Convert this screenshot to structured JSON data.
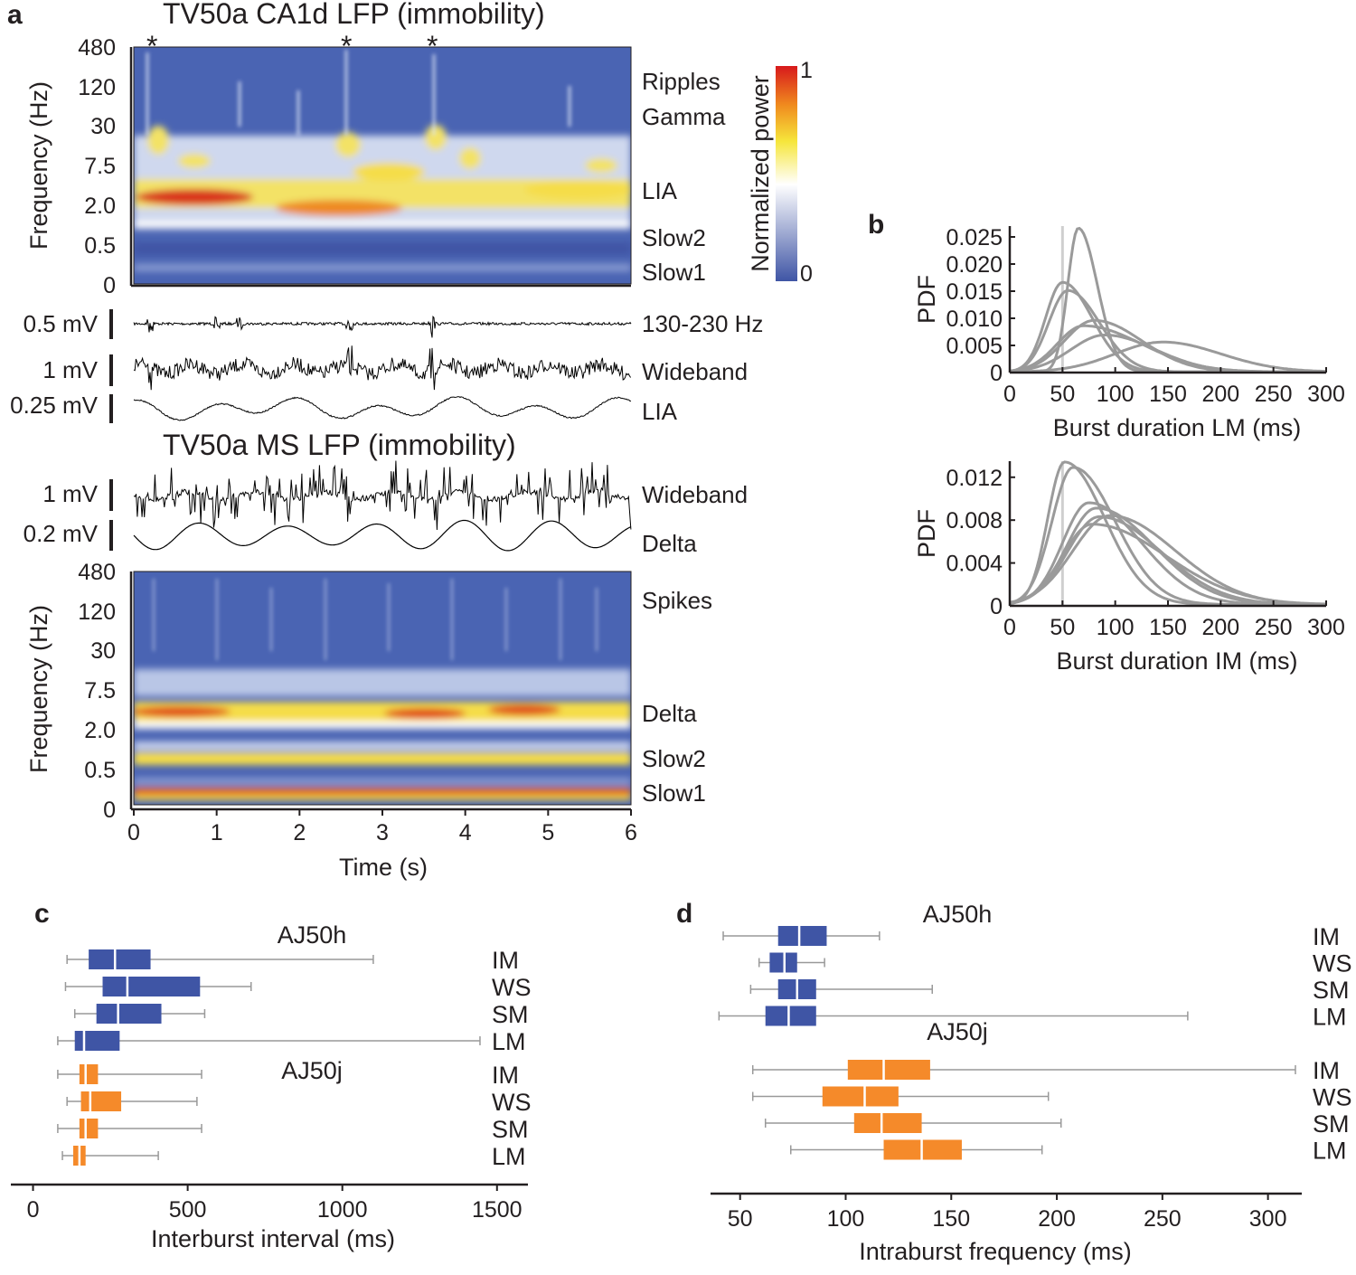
{
  "panels": {
    "a": "a",
    "b": "b",
    "c": "c",
    "d": "d"
  },
  "colors": {
    "blue": "#3f55a5",
    "orange": "#f58a2a",
    "gray": "#999999",
    "curve": "#9a9a9a",
    "ink": "#231f20"
  },
  "chart_data": [
    {
      "id": "a_top_spectrogram",
      "type": "heatmap",
      "title": "TV50a CA1d LFP (immobility)",
      "ylabel": "Frequency (Hz)",
      "yticks": [
        "480",
        "120",
        "30",
        "7.5",
        "2.0",
        "0.5",
        "0"
      ],
      "xlim": [
        0,
        6
      ],
      "markers": [
        "*",
        "*",
        "*"
      ],
      "marker_times": [
        0.2,
        2.6,
        3.6
      ],
      "band_labels": [
        "Ripples",
        "Gamma",
        "LIA",
        "Slow2",
        "Slow1"
      ],
      "colorbar": {
        "label": "Normalized power",
        "min": "0",
        "max": "1",
        "colors": [
          "#3f55a5",
          "#ffffff",
          "#f6e63b",
          "#f08a1e",
          "#d7191c"
        ]
      }
    },
    {
      "id": "a_ca1_traces",
      "type": "line",
      "traces": [
        {
          "scale": "0.5 mV",
          "label": "130-230 Hz"
        },
        {
          "scale": "1 mV",
          "label": "Wideband"
        },
        {
          "scale": "0.25 mV",
          "label": "LIA"
        }
      ]
    },
    {
      "id": "a_ms_traces",
      "type": "line",
      "title": "TV50a MS LFP (immobility)",
      "traces": [
        {
          "scale": "1 mV",
          "label": "Wideband"
        },
        {
          "scale": "0.2 mV",
          "label": "Delta"
        }
      ]
    },
    {
      "id": "a_bottom_spectrogram",
      "type": "heatmap",
      "ylabel": "Frequency (Hz)",
      "yticks": [
        "480",
        "120",
        "30",
        "7.5",
        "2.0",
        "0.5",
        "0"
      ],
      "xlabel": "Time (s)",
      "xticks": [
        "0",
        "1",
        "2",
        "3",
        "4",
        "5",
        "6"
      ],
      "xlim": [
        0,
        6
      ],
      "band_labels": [
        "Spikes",
        "Delta",
        "Slow2",
        "Slow1"
      ]
    },
    {
      "id": "b_lm",
      "type": "line",
      "ylabel": "PDF",
      "xlabel": "Burst duration LM (ms)",
      "xlim": [
        0,
        300
      ],
      "ylim": [
        0,
        0.027
      ],
      "xticks": [
        "0",
        "50",
        "100",
        "150",
        "200",
        "250",
        "300"
      ],
      "yticks": [
        "0",
        "0.005",
        "0.010",
        "0.015",
        "0.020",
        "0.025"
      ],
      "ytick_values": [
        0,
        0.005,
        0.01,
        0.015,
        0.02,
        0.025
      ],
      "reference_line_x": 50,
      "series": [
        {
          "name": "curve 1",
          "peak_x": 65,
          "peak_y": 0.0265,
          "sd_left": 10,
          "sd_right": 18
        },
        {
          "name": "curve 2",
          "peak_x": 50,
          "peak_y": 0.0165,
          "sd_left": 16,
          "sd_right": 28
        },
        {
          "name": "curve 3",
          "peak_x": 55,
          "peak_y": 0.015,
          "sd_left": 18,
          "sd_right": 30
        },
        {
          "name": "curve 4",
          "peak_x": 80,
          "peak_y": 0.0095,
          "sd_left": 28,
          "sd_right": 45
        },
        {
          "name": "curve 5",
          "peak_x": 70,
          "peak_y": 0.0085,
          "sd_left": 25,
          "sd_right": 55
        },
        {
          "name": "curve 6",
          "peak_x": 90,
          "peak_y": 0.0068,
          "sd_left": 32,
          "sd_right": 48
        },
        {
          "name": "curve 7",
          "peak_x": 145,
          "peak_y": 0.0055,
          "sd_left": 45,
          "sd_right": 55
        }
      ]
    },
    {
      "id": "b_im",
      "type": "line",
      "ylabel": "PDF",
      "xlabel": "Burst duration IM (ms)",
      "xlim": [
        0,
        300
      ],
      "ylim": [
        0,
        0.0135
      ],
      "xticks": [
        "0",
        "50",
        "100",
        "150",
        "200",
        "250",
        "300"
      ],
      "yticks": [
        "0",
        "0.004",
        "0.008",
        "0.012"
      ],
      "ytick_values": [
        0,
        0.004,
        0.008,
        0.012
      ],
      "reference_line_x": 50,
      "series": [
        {
          "name": "curve 1",
          "peak_x": 52,
          "peak_y": 0.0133,
          "sd_left": 16,
          "sd_right": 38
        },
        {
          "name": "curve 2",
          "peak_x": 60,
          "peak_y": 0.0128,
          "sd_left": 20,
          "sd_right": 40
        },
        {
          "name": "curve 3",
          "peak_x": 75,
          "peak_y": 0.0095,
          "sd_left": 25,
          "sd_right": 50
        },
        {
          "name": "curve 4",
          "peak_x": 82,
          "peak_y": 0.009,
          "sd_left": 28,
          "sd_right": 55
        },
        {
          "name": "curve 5",
          "peak_x": 85,
          "peak_y": 0.0082,
          "sd_left": 30,
          "sd_right": 58
        },
        {
          "name": "curve 6",
          "peak_x": 95,
          "peak_y": 0.0083,
          "sd_left": 35,
          "sd_right": 62
        },
        {
          "name": "curve 7",
          "peak_x": 78,
          "peak_y": 0.0075,
          "sd_left": 28,
          "sd_right": 70
        }
      ]
    },
    {
      "id": "c",
      "type": "box",
      "xlabel": "Interburst interval (ms)",
      "xlim": [
        -60,
        1600
      ],
      "xticks": [
        0,
        500,
        1000,
        1500
      ],
      "xtick_labels": [
        "0",
        "500",
        "1000",
        "1500"
      ],
      "groups": [
        {
          "name": "AJ50h",
          "color": "#3f55a5",
          "rows": [
            {
              "label": "IM",
              "whisker_low": 110,
              "q1": 180,
              "median": 265,
              "q3": 380,
              "whisker_high": 1100
            },
            {
              "label": "WS",
              "whisker_low": 105,
              "q1": 225,
              "median": 305,
              "q3": 540,
              "whisker_high": 705
            },
            {
              "label": "SM",
              "whisker_low": 135,
              "q1": 205,
              "median": 275,
              "q3": 415,
              "whisker_high": 555
            },
            {
              "label": "LM",
              "whisker_low": 80,
              "q1": 135,
              "median": 165,
              "q3": 280,
              "whisker_high": 1445
            }
          ]
        },
        {
          "name": "AJ50j",
          "color": "#f58a2a",
          "rows": [
            {
              "label": "IM",
              "whisker_low": 80,
              "q1": 150,
              "median": 170,
              "q3": 210,
              "whisker_high": 545
            },
            {
              "label": "WS",
              "whisker_low": 110,
              "q1": 155,
              "median": 185,
              "q3": 285,
              "whisker_high": 530
            },
            {
              "label": "SM",
              "whisker_low": 80,
              "q1": 150,
              "median": 170,
              "q3": 210,
              "whisker_high": 545
            },
            {
              "label": "LM",
              "whisker_low": 95,
              "q1": 130,
              "median": 150,
              "q3": 170,
              "whisker_high": 405
            }
          ]
        }
      ]
    },
    {
      "id": "d",
      "type": "box",
      "xlabel": "Intraburst frequency (ms)",
      "xlim": [
        36,
        316
      ],
      "xticks": [
        50,
        100,
        150,
        200,
        250,
        300
      ],
      "xtick_labels": [
        "50",
        "100",
        "150",
        "200",
        "250",
        "300"
      ],
      "groups": [
        {
          "name": "AJ50h",
          "color": "#3f55a5",
          "rows": [
            {
              "label": "IM",
              "whisker_low": 42,
              "q1": 68,
              "median": 78,
              "q3": 91,
              "whisker_high": 116
            },
            {
              "label": "WS",
              "whisker_low": 59,
              "q1": 64,
              "median": 71,
              "q3": 77,
              "whisker_high": 90
            },
            {
              "label": "SM",
              "whisker_low": 55,
              "q1": 68,
              "median": 77,
              "q3": 86,
              "whisker_high": 141
            },
            {
              "label": "LM",
              "whisker_low": 40,
              "q1": 62,
              "median": 73,
              "q3": 86,
              "whisker_high": 262
            }
          ]
        },
        {
          "name": "AJ50j",
          "color": "#f58a2a",
          "rows": [
            {
              "label": "IM",
              "whisker_low": 56,
              "q1": 101,
              "median": 118,
              "q3": 140,
              "whisker_high": 313
            },
            {
              "label": "WS",
              "whisker_low": 56,
              "q1": 89,
              "median": 109,
              "q3": 125,
              "whisker_high": 196
            },
            {
              "label": "SM",
              "whisker_low": 62,
              "q1": 104,
              "median": 117,
              "q3": 136,
              "whisker_high": 202
            },
            {
              "label": "LM",
              "whisker_low": 74,
              "q1": 118,
              "median": 136,
              "q3": 155,
              "whisker_high": 193
            }
          ]
        }
      ]
    }
  ]
}
